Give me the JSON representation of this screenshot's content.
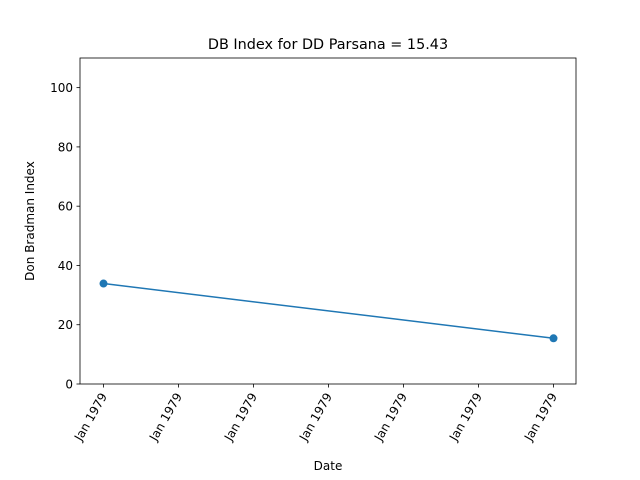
{
  "chart_data": {
    "type": "line",
    "title": "DB Index for DD Parsana = 15.43",
    "xlabel": "Date",
    "ylabel": "Don Bradman Index",
    "ylim": [
      0,
      110
    ],
    "yticks": [
      0,
      20,
      40,
      60,
      80,
      100
    ],
    "xticks": [
      "Jan 1979",
      "Jan 1979",
      "Jan 1979",
      "Jan 1979",
      "Jan 1979",
      "Jan 1979",
      "Jan 1979"
    ],
    "series": [
      {
        "points": [
          {
            "x": "Jan 1979",
            "y": 33.9
          },
          {
            "x": "Jan 1979",
            "y": 15.43
          }
        ]
      }
    ],
    "line_color": "#1f77b4",
    "grid": false
  }
}
